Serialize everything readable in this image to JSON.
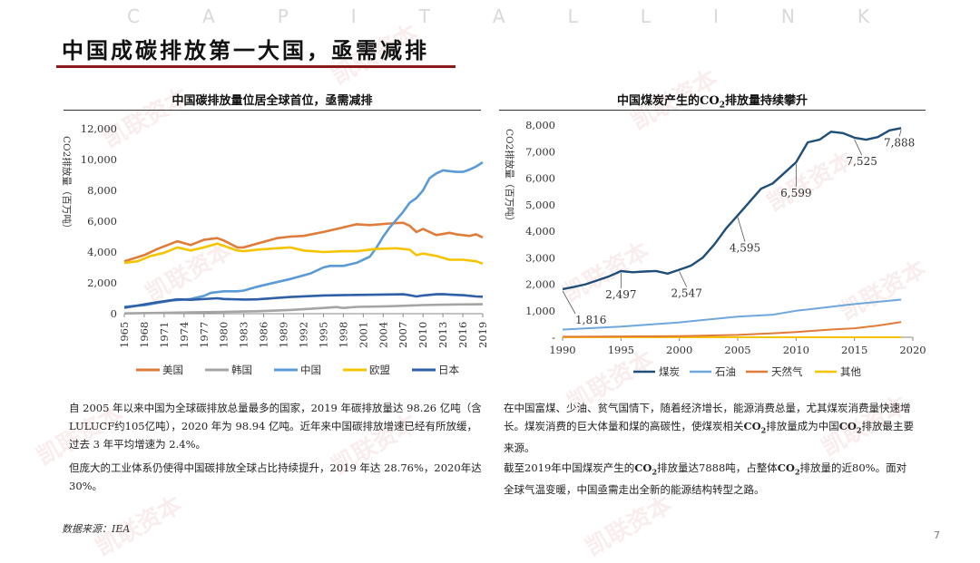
{
  "brand_letters": [
    "C",
    "A",
    "P",
    "I",
    "T",
    "A",
    "L",
    "L",
    "I",
    "N",
    "K"
  ],
  "page_title": "中国成碳排放第一大国，亟需减排",
  "watermark": "凯联资本",
  "source": "数据来源：IEA",
  "page_number": "7",
  "colors": {
    "accent": "#8b1a1a",
    "usa": "#e07b39",
    "korea": "#a5a5a5",
    "china": "#5b9bd5",
    "eu": "#f5c400",
    "japan": "#2f5fa7",
    "coal": "#1f4e79",
    "oil": "#6fa8dc",
    "gas": "#e07b39",
    "other": "#f5c400"
  },
  "left": {
    "title": "中国碳排放量位居全球首位，亟需减排",
    "paragraph1": "自 2005 年以来中国为全球碳排放总量最多的国家，2019 年碳排放量达 98.26 亿吨（含LULUCF约105亿吨），2020 年为 98.94 亿吨。近年来中国碳排放增速已经有所放缓，过去 3 年平均增速为 2.4%。",
    "paragraph2": "但庞大的工业体系仍使得中国碳排放全球占比持续提升，2019 年达 28.76%，2020年达30%。"
  },
  "right": {
    "title_pre": "中国煤炭产生的CO",
    "title_sub": "2",
    "title_post": "排放量持续攀升",
    "p1_a": "在中国富煤、少油、贫气国情下，随着经济增长，能源消费总量，尤其煤炭消费量快速增长。煤炭消费的巨大体量和煤的高碳性，使煤炭相关",
    "p1_co2": "CO",
    "p1_sub": "2",
    "p1_b": "排放量成为中国",
    "p1_co2b": "CO",
    "p1_subb": "2",
    "p1_c": "排放最主要来源。",
    "p2_a": "截至2019年中国煤炭产生的",
    "p2_co2": "CO",
    "p2_sub": "2",
    "p2_b": "排放量达7888吨，占整体",
    "p2_co2b": "CO",
    "p2_subb": "2",
    "p2_c": "排放量的近80%。面对全球气温变暖，中国亟需走出全新的能源结构转型之路。"
  },
  "chart_data": [
    {
      "type": "line",
      "title": "中国碳排放量位居全球首位，亟需减排",
      "ylabel": "CO2排放量（百万吨）",
      "xlabel": "",
      "ylim": [
        0,
        12000
      ],
      "yticks": [
        "0",
        "2,000",
        "4,000",
        "6,000",
        "8,000",
        "10,000",
        "12,000"
      ],
      "ytick_values": [
        0,
        2000,
        4000,
        6000,
        8000,
        10000,
        12000
      ],
      "xlim": [
        1965,
        2019
      ],
      "xticks": [
        "1965",
        "1968",
        "1971",
        "1974",
        "1977",
        "1980",
        "1983",
        "1986",
        "1989",
        "1992",
        "1995",
        "1998",
        "2001",
        "2004",
        "2007",
        "2010",
        "2013",
        "2016",
        "2019"
      ],
      "legend": [
        "美国",
        "韩国",
        "中国",
        "欧盟",
        "日本"
      ],
      "series": [
        {
          "name": "美国",
          "color": "#e07b39",
          "x": [
            1965,
            1968,
            1970,
            1973,
            1975,
            1977,
            1979,
            1980,
            1982,
            1983,
            1985,
            1988,
            1990,
            1992,
            1995,
            1997,
            2000,
            2002,
            2005,
            2007,
            2008,
            2009,
            2010,
            2012,
            2014,
            2015,
            2017,
            2018,
            2019
          ],
          "y": [
            3400,
            3800,
            4200,
            4700,
            4450,
            4800,
            4900,
            4750,
            4300,
            4300,
            4550,
            4900,
            5000,
            5050,
            5300,
            5500,
            5800,
            5750,
            5850,
            5900,
            5700,
            5300,
            5500,
            5100,
            5250,
            5150,
            5050,
            5150,
            4950
          ]
        },
        {
          "name": "韩国",
          "color": "#a5a5a5",
          "x": [
            1965,
            1970,
            1975,
            1980,
            1985,
            1990,
            1995,
            1997,
            1998,
            2000,
            2005,
            2010,
            2015,
            2019
          ],
          "y": [
            20,
            50,
            80,
            120,
            160,
            240,
            370,
            430,
            370,
            440,
            480,
            560,
            600,
            610
          ]
        },
        {
          "name": "中国",
          "color": "#5b9bd5",
          "x": [
            1965,
            1968,
            1970,
            1972,
            1975,
            1977,
            1978,
            1980,
            1982,
            1983,
            1985,
            1987,
            1990,
            1993,
            1995,
            1996,
            1998,
            2000,
            2002,
            2003,
            2004,
            2005,
            2006,
            2007,
            2008,
            2009,
            2010,
            2011,
            2012,
            2013,
            2014,
            2015,
            2016,
            2017,
            2018,
            2019
          ],
          "y": [
            450,
            550,
            700,
            850,
            950,
            1150,
            1350,
            1450,
            1450,
            1500,
            1750,
            1950,
            2250,
            2600,
            3000,
            3100,
            3100,
            3300,
            3700,
            4300,
            5000,
            5600,
            6100,
            6600,
            7200,
            7500,
            8000,
            8800,
            9100,
            9300,
            9250,
            9200,
            9200,
            9350,
            9550,
            9826
          ]
        },
        {
          "name": "欧盟",
          "color": "#f5c400",
          "x": [
            1965,
            1967,
            1969,
            1971,
            1973,
            1975,
            1977,
            1979,
            1980,
            1982,
            1983,
            1985,
            1988,
            1990,
            1992,
            1995,
            1998,
            2000,
            2003,
            2006,
            2008,
            2009,
            2010,
            2012,
            2014,
            2016,
            2018,
            2019
          ],
          "y": [
            3300,
            3400,
            3750,
            3950,
            4300,
            4100,
            4300,
            4550,
            4400,
            4100,
            4050,
            4150,
            4250,
            4300,
            4100,
            4000,
            4050,
            4050,
            4200,
            4250,
            4150,
            3800,
            3900,
            3750,
            3500,
            3500,
            3400,
            3250
          ]
        },
        {
          "name": "日本",
          "color": "#2f5fa7",
          "x": [
            1965,
            1968,
            1970,
            1973,
            1975,
            1979,
            1980,
            1983,
            1985,
            1990,
            1995,
            2000,
            2005,
            2007,
            2008,
            2009,
            2010,
            2012,
            2013,
            2014,
            2016,
            2018,
            2019
          ],
          "y": [
            380,
            600,
            750,
            930,
            900,
            1000,
            950,
            920,
            930,
            1080,
            1180,
            1220,
            1250,
            1260,
            1200,
            1120,
            1180,
            1260,
            1270,
            1240,
            1200,
            1120,
            1100
          ]
        }
      ]
    },
    {
      "type": "line",
      "title": "中国煤炭产生的CO2排放量持续攀升",
      "ylabel": "CO2排放量（百万吨）",
      "xlabel": "",
      "ylim": [
        0,
        8000
      ],
      "yticks": [
        "-",
        "1,000",
        "2,000",
        "3,000",
        "4,000",
        "5,000",
        "6,000",
        "7,000",
        "8,000"
      ],
      "ytick_values": [
        0,
        1000,
        2000,
        3000,
        4000,
        5000,
        6000,
        7000,
        8000
      ],
      "xlim": [
        1990,
        2020
      ],
      "xticks": [
        "1990",
        "1995",
        "2000",
        "2005",
        "2010",
        "2015",
        "2020"
      ],
      "xtick_values": [
        1990,
        1995,
        2000,
        2005,
        2010,
        2015,
        2020
      ],
      "legend": [
        "煤炭",
        "石油",
        "天然气",
        "其他"
      ],
      "annotations": [
        {
          "x": 1990,
          "y": 1816,
          "label": "1,816"
        },
        {
          "x": 1995,
          "y": 2497,
          "label": "2,497"
        },
        {
          "x": 2000,
          "y": 2547,
          "label": "2,547"
        },
        {
          "x": 2005,
          "y": 4595,
          "label": "4,595"
        },
        {
          "x": 2010,
          "y": 6599,
          "label": "6,599"
        },
        {
          "x": 2015,
          "y": 7525,
          "label": "7,525"
        },
        {
          "x": 2019,
          "y": 7888,
          "label": "7,888"
        }
      ],
      "series": [
        {
          "name": "煤炭",
          "color": "#1f4e79",
          "x": [
            1990,
            1991,
            1992,
            1993,
            1994,
            1995,
            1996,
            1997,
            1998,
            1999,
            2000,
            2001,
            2002,
            2003,
            2004,
            2005,
            2006,
            2007,
            2008,
            2009,
            2010,
            2011,
            2012,
            2013,
            2014,
            2015,
            2016,
            2017,
            2018,
            2019
          ],
          "y": [
            1816,
            1900,
            2000,
            2150,
            2300,
            2497,
            2450,
            2480,
            2500,
            2400,
            2547,
            2700,
            3000,
            3500,
            4100,
            4595,
            5100,
            5600,
            5800,
            6200,
            6599,
            7350,
            7450,
            7750,
            7700,
            7525,
            7450,
            7550,
            7800,
            7888
          ]
        },
        {
          "name": "石油",
          "color": "#6fa8dc",
          "x": [
            1990,
            1995,
            2000,
            2005,
            2008,
            2010,
            2013,
            2015,
            2019
          ],
          "y": [
            290,
            400,
            560,
            780,
            850,
            1000,
            1150,
            1250,
            1420
          ]
        },
        {
          "name": "天然气",
          "color": "#e07b39",
          "x": [
            1990,
            1995,
            2000,
            2005,
            2008,
            2010,
            2013,
            2015,
            2017,
            2019
          ],
          "y": [
            20,
            30,
            40,
            90,
            150,
            200,
            290,
            340,
            440,
            570
          ]
        },
        {
          "name": "其他",
          "color": "#f5c400",
          "x": [
            1990,
            2019
          ],
          "y": [
            0,
            0
          ]
        }
      ]
    }
  ]
}
